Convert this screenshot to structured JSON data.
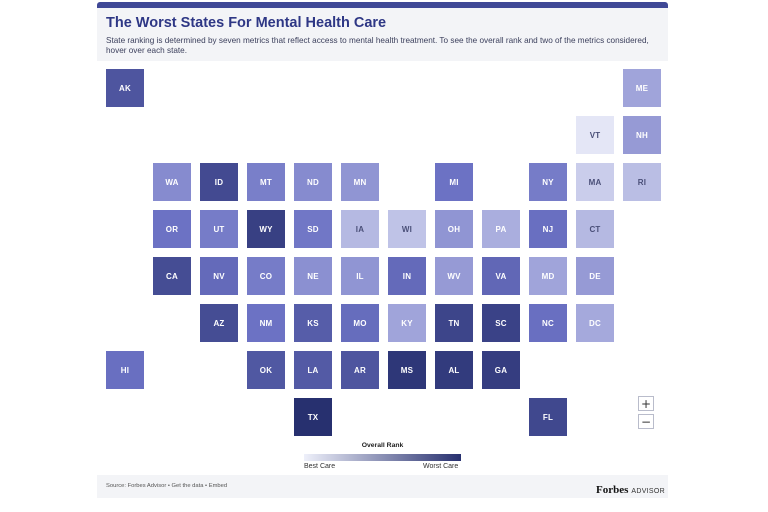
{
  "header": {
    "title": "The Worst States For Mental Health Care",
    "subtitle": "State ranking is determined by seven metrics that reflect access to mental health treatment. To see the overall rank and two of the metrics considered, hover over each state."
  },
  "zoom": {
    "in_label": "+",
    "out_label": "−"
  },
  "legend": {
    "title": "Overall Rank",
    "low_label": "Best Care",
    "high_label": "Worst Care",
    "color_low": "#eef0fa",
    "color_high": "#27306f"
  },
  "footer": {
    "source": "Source: Forbes Advisor",
    "sep1": " • ",
    "get_data": "Get the data",
    "sep2": " • ",
    "embed": "Embed",
    "logo": "Forbes",
    "logo_sub": "ADVISOR"
  },
  "states": [
    {
      "abbr": "AK",
      "row": 0,
      "col": 0,
      "level": 0.72
    },
    {
      "abbr": "ME",
      "row": 0,
      "col": 11,
      "level": 0.3
    },
    {
      "abbr": "VT",
      "row": 1,
      "col": 10,
      "level": 0.04
    },
    {
      "abbr": "NH",
      "row": 1,
      "col": 11,
      "level": 0.34
    },
    {
      "abbr": "WA",
      "row": 2,
      "col": 1,
      "level": 0.4
    },
    {
      "abbr": "ID",
      "row": 2,
      "col": 2,
      "level": 0.8
    },
    {
      "abbr": "MT",
      "row": 2,
      "col": 3,
      "level": 0.45
    },
    {
      "abbr": "ND",
      "row": 2,
      "col": 4,
      "level": 0.4
    },
    {
      "abbr": "MN",
      "row": 2,
      "col": 5,
      "level": 0.36
    },
    {
      "abbr": "MI",
      "row": 2,
      "col": 7,
      "level": 0.5
    },
    {
      "abbr": "NY",
      "row": 2,
      "col": 9,
      "level": 0.46
    },
    {
      "abbr": "MA",
      "row": 2,
      "col": 10,
      "level": 0.14
    },
    {
      "abbr": "RI",
      "row": 2,
      "col": 11,
      "level": 0.2
    },
    {
      "abbr": "OR",
      "row": 3,
      "col": 1,
      "level": 0.5
    },
    {
      "abbr": "UT",
      "row": 3,
      "col": 2,
      "level": 0.46
    },
    {
      "abbr": "WY",
      "row": 3,
      "col": 3,
      "level": 0.88
    },
    {
      "abbr": "SD",
      "row": 3,
      "col": 4,
      "level": 0.48
    },
    {
      "abbr": "IA",
      "row": 3,
      "col": 5,
      "level": 0.22
    },
    {
      "abbr": "WI",
      "row": 3,
      "col": 6,
      "level": 0.18
    },
    {
      "abbr": "OH",
      "row": 3,
      "col": 7,
      "level": 0.36
    },
    {
      "abbr": "PA",
      "row": 3,
      "col": 8,
      "level": 0.26
    },
    {
      "abbr": "NJ",
      "row": 3,
      "col": 9,
      "level": 0.52
    },
    {
      "abbr": "CT",
      "row": 3,
      "col": 10,
      "level": 0.22
    },
    {
      "abbr": "CA",
      "row": 4,
      "col": 1,
      "level": 0.78
    },
    {
      "abbr": "NV",
      "row": 4,
      "col": 2,
      "level": 0.56
    },
    {
      "abbr": "CO",
      "row": 4,
      "col": 3,
      "level": 0.46
    },
    {
      "abbr": "NE",
      "row": 4,
      "col": 4,
      "level": 0.38
    },
    {
      "abbr": "IL",
      "row": 4,
      "col": 5,
      "level": 0.36
    },
    {
      "abbr": "IN",
      "row": 4,
      "col": 6,
      "level": 0.56
    },
    {
      "abbr": "WV",
      "row": 4,
      "col": 7,
      "level": 0.34
    },
    {
      "abbr": "VA",
      "row": 4,
      "col": 8,
      "level": 0.58
    },
    {
      "abbr": "MD",
      "row": 4,
      "col": 9,
      "level": 0.3
    },
    {
      "abbr": "DE",
      "row": 4,
      "col": 10,
      "level": 0.34
    },
    {
      "abbr": "AZ",
      "row": 5,
      "col": 2,
      "level": 0.78
    },
    {
      "abbr": "NM",
      "row": 5,
      "col": 3,
      "level": 0.5
    },
    {
      "abbr": "KS",
      "row": 5,
      "col": 4,
      "level": 0.66
    },
    {
      "abbr": "MO",
      "row": 5,
      "col": 5,
      "level": 0.54
    },
    {
      "abbr": "KY",
      "row": 5,
      "col": 6,
      "level": 0.3
    },
    {
      "abbr": "TN",
      "row": 5,
      "col": 7,
      "level": 0.84
    },
    {
      "abbr": "SC",
      "row": 5,
      "col": 8,
      "level": 0.86
    },
    {
      "abbr": "NC",
      "row": 5,
      "col": 9,
      "level": 0.52
    },
    {
      "abbr": "DC",
      "row": 5,
      "col": 10,
      "level": 0.28
    },
    {
      "abbr": "HI",
      "row": 6,
      "col": 0,
      "level": 0.52
    },
    {
      "abbr": "OK",
      "row": 6,
      "col": 3,
      "level": 0.7
    },
    {
      "abbr": "LA",
      "row": 6,
      "col": 4,
      "level": 0.68
    },
    {
      "abbr": "AR",
      "row": 6,
      "col": 5,
      "level": 0.72
    },
    {
      "abbr": "MS",
      "row": 6,
      "col": 6,
      "level": 0.95
    },
    {
      "abbr": "AL",
      "row": 6,
      "col": 7,
      "level": 0.92
    },
    {
      "abbr": "GA",
      "row": 6,
      "col": 8,
      "level": 0.9
    },
    {
      "abbr": "TX",
      "row": 7,
      "col": 4,
      "level": 1.0
    },
    {
      "abbr": "FL",
      "row": 7,
      "col": 9,
      "level": 0.82
    }
  ]
}
